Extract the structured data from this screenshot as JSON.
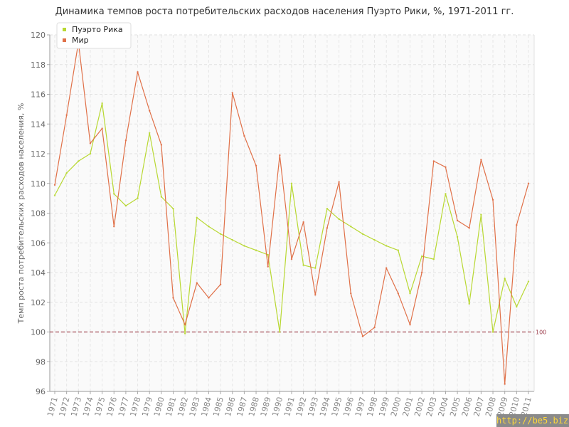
{
  "chart_data": {
    "type": "line",
    "title": "Динамика темпов роста потребительских расходов населения Пуэрто Рики, %, 1971-2011 гг.",
    "ylabel": "Темп роста потребительских расходов населения, %",
    "xlabel": "",
    "ylim": [
      96,
      120
    ],
    "yticks": [
      96,
      98,
      100,
      102,
      104,
      106,
      108,
      110,
      112,
      114,
      116,
      118,
      120
    ],
    "x": [
      "1971",
      "1972",
      "1973",
      "1974",
      "1975",
      "1976",
      "1977",
      "1978",
      "1979",
      "1980",
      "1981",
      "1982",
      "1983",
      "1984",
      "1985",
      "1986",
      "1987",
      "1988",
      "1989",
      "1990",
      "1991",
      "1992",
      "1993",
      "1994",
      "1995",
      "1996",
      "1997",
      "1998",
      "1999",
      "2000",
      "2001",
      "2002",
      "2003",
      "2004",
      "2005",
      "2006",
      "2007",
      "2008",
      "2009",
      "2010",
      "2011"
    ],
    "grid": true,
    "legend_position": "top-left",
    "reference_line": {
      "value": 100,
      "label": "100",
      "color": "#a34a55"
    },
    "series": [
      {
        "name": "Пуэрто Рика",
        "color": "#b8d832",
        "values": [
          109.2,
          110.7,
          111.5,
          112.0,
          115.4,
          109.3,
          108.5,
          109.0,
          113.4,
          109.1,
          108.3,
          99.9,
          107.7,
          107.1,
          106.6,
          106.2,
          105.8,
          105.5,
          105.2,
          100.0,
          110.0,
          104.5,
          104.3,
          108.3,
          107.6,
          107.1,
          106.6,
          106.2,
          105.8,
          105.5,
          102.6,
          105.1,
          104.9,
          109.3,
          106.4,
          101.9,
          107.9,
          100.0,
          103.6,
          101.7,
          103.4
        ]
      },
      {
        "name": "Мир",
        "color": "#e07048",
        "values": [
          109.9,
          114.6,
          119.5,
          112.7,
          113.7,
          107.1,
          112.9,
          117.5,
          114.9,
          112.6,
          102.3,
          100.5,
          103.3,
          102.3,
          103.2,
          116.1,
          113.2,
          111.2,
          104.4,
          111.9,
          104.9,
          107.4,
          102.5,
          107.0,
          110.1,
          102.6,
          99.7,
          100.3,
          104.3,
          102.6,
          100.5,
          104.0,
          111.5,
          111.1,
          107.5,
          107.0,
          111.6,
          108.9,
          96.5,
          107.2,
          110.0
        ]
      }
    ]
  },
  "watermark": "http://be5.biz/"
}
